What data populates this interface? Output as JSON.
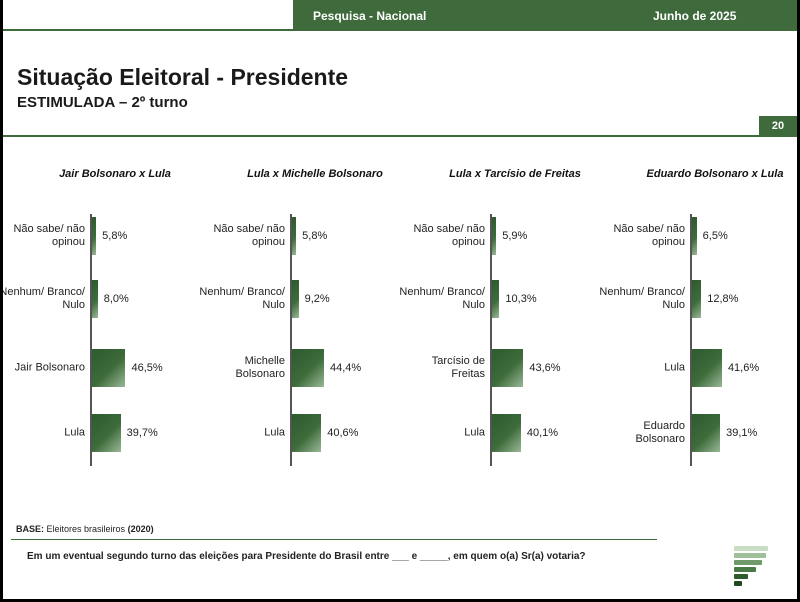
{
  "header": {
    "survey": "Pesquisa - Nacional",
    "date": "Junho de 2025"
  },
  "title": "Situação Eleitoral - Presidente",
  "subtitle": "ESTIMULADA – 2º turno",
  "page_number": "20",
  "footer": {
    "base_label": "BASE:",
    "base_text": "Eleitores brasileiros",
    "base_year": "(2020)",
    "question": "Em um eventual segundo turno das eleições para Presidente do Brasil entre ___ e _____, em quem o(a) Sr(a) votaria?"
  },
  "colors": {
    "brand_green": "#3f6b3c",
    "bar_dark": "#2e5a2e",
    "bar_light": "#9ab897"
  },
  "chart_data": [
    {
      "type": "bar",
      "orientation": "horizontal",
      "title": "Jair Bolsonaro x Lula",
      "categories": [
        "Não sabe/ não opinou",
        "Nenhum/ Branco/ Nulo",
        "Jair Bolsonaro",
        "Lula"
      ],
      "values": [
        5.8,
        8.0,
        46.5,
        39.7
      ],
      "labels": [
        "5,8%",
        "8,0%",
        "46,5%",
        "39,7%"
      ]
    },
    {
      "type": "bar",
      "orientation": "horizontal",
      "title": "Lula x Michelle Bolsonaro",
      "categories": [
        "Não sabe/ não opinou",
        "Nenhum/ Branco/ Nulo",
        "Michelle Bolsonaro",
        "Lula"
      ],
      "values": [
        5.8,
        9.2,
        44.4,
        40.6
      ],
      "labels": [
        "5,8%",
        "9,2%",
        "44,4%",
        "40,6%"
      ]
    },
    {
      "type": "bar",
      "orientation": "horizontal",
      "title": "Lula x Tarcísio de Freitas",
      "categories": [
        "Não sabe/ não opinou",
        "Nenhum/ Branco/ Nulo",
        "Tarcísio de Freitas",
        "Lula"
      ],
      "values": [
        5.9,
        10.3,
        43.6,
        40.1
      ],
      "labels": [
        "5,9%",
        "10,3%",
        "43,6%",
        "40,1%"
      ]
    },
    {
      "type": "bar",
      "orientation": "horizontal",
      "title": "Eduardo Bolsonaro x Lula",
      "categories": [
        "Não sabe/ não opinou",
        "Nenhum/ Branco/ Nulo",
        "Lula",
        "Eduardo Bolsonaro"
      ],
      "values": [
        6.5,
        12.8,
        41.6,
        39.1
      ],
      "labels": [
        "6,5%",
        "12,8%",
        "41,6%",
        "39,1%"
      ]
    }
  ]
}
